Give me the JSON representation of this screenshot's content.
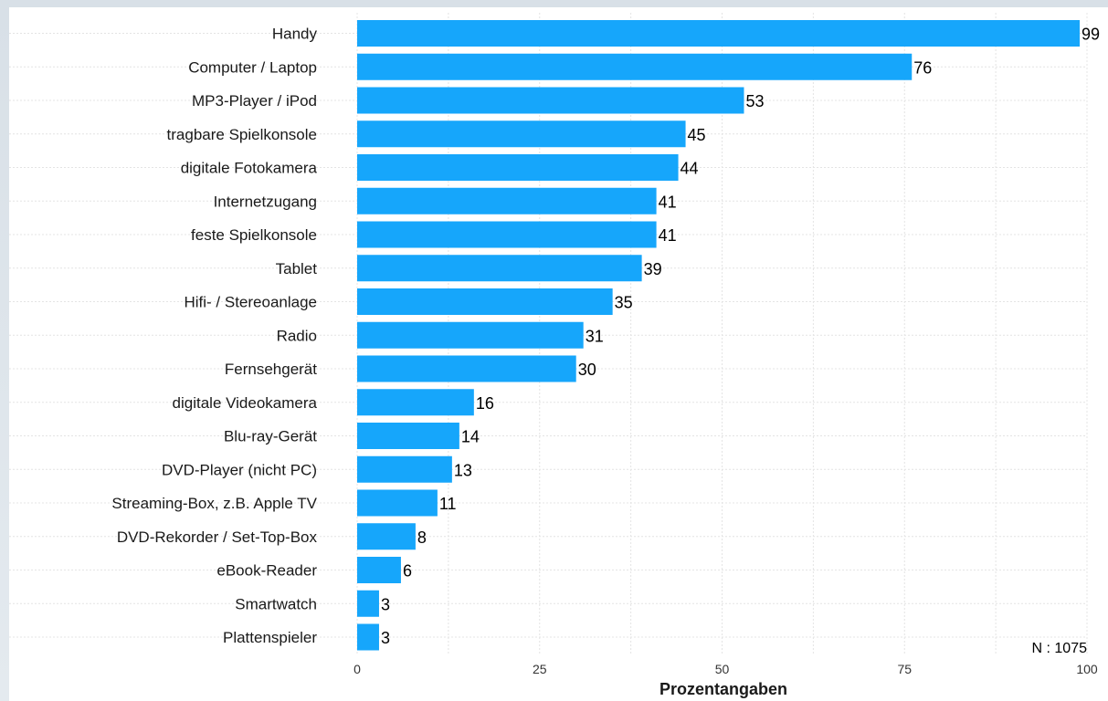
{
  "chart_data": {
    "type": "bar",
    "orientation": "horizontal",
    "categories": [
      "Handy",
      "Computer / Laptop",
      "MP3-Player / iPod",
      "tragbare Spielkonsole",
      "digitale Fotokamera",
      "Internetzugang",
      "feste Spielkonsole",
      "Tablet",
      "Hifi- / Stereoanlage",
      "Radio",
      "Fernsehgerät",
      "digitale Videokamera",
      "Blu-ray-Gerät",
      "DVD-Player (nicht PC)",
      "Streaming-Box, z.B. Apple TV",
      "DVD-Rekorder / Set-Top-Box",
      "eBook-Reader",
      "Smartwatch",
      "Plattenspieler"
    ],
    "values": [
      99,
      76,
      53,
      45,
      44,
      41,
      41,
      39,
      35,
      31,
      30,
      16,
      14,
      13,
      11,
      8,
      6,
      3,
      3
    ],
    "xlabel": "Prozentangaben",
    "ylabel": "",
    "xlim": [
      0,
      100
    ],
    "xticks": [
      0,
      25,
      50,
      75,
      100
    ],
    "grid": true,
    "bar_color": "#16a6fb",
    "note": "N : 1075"
  }
}
